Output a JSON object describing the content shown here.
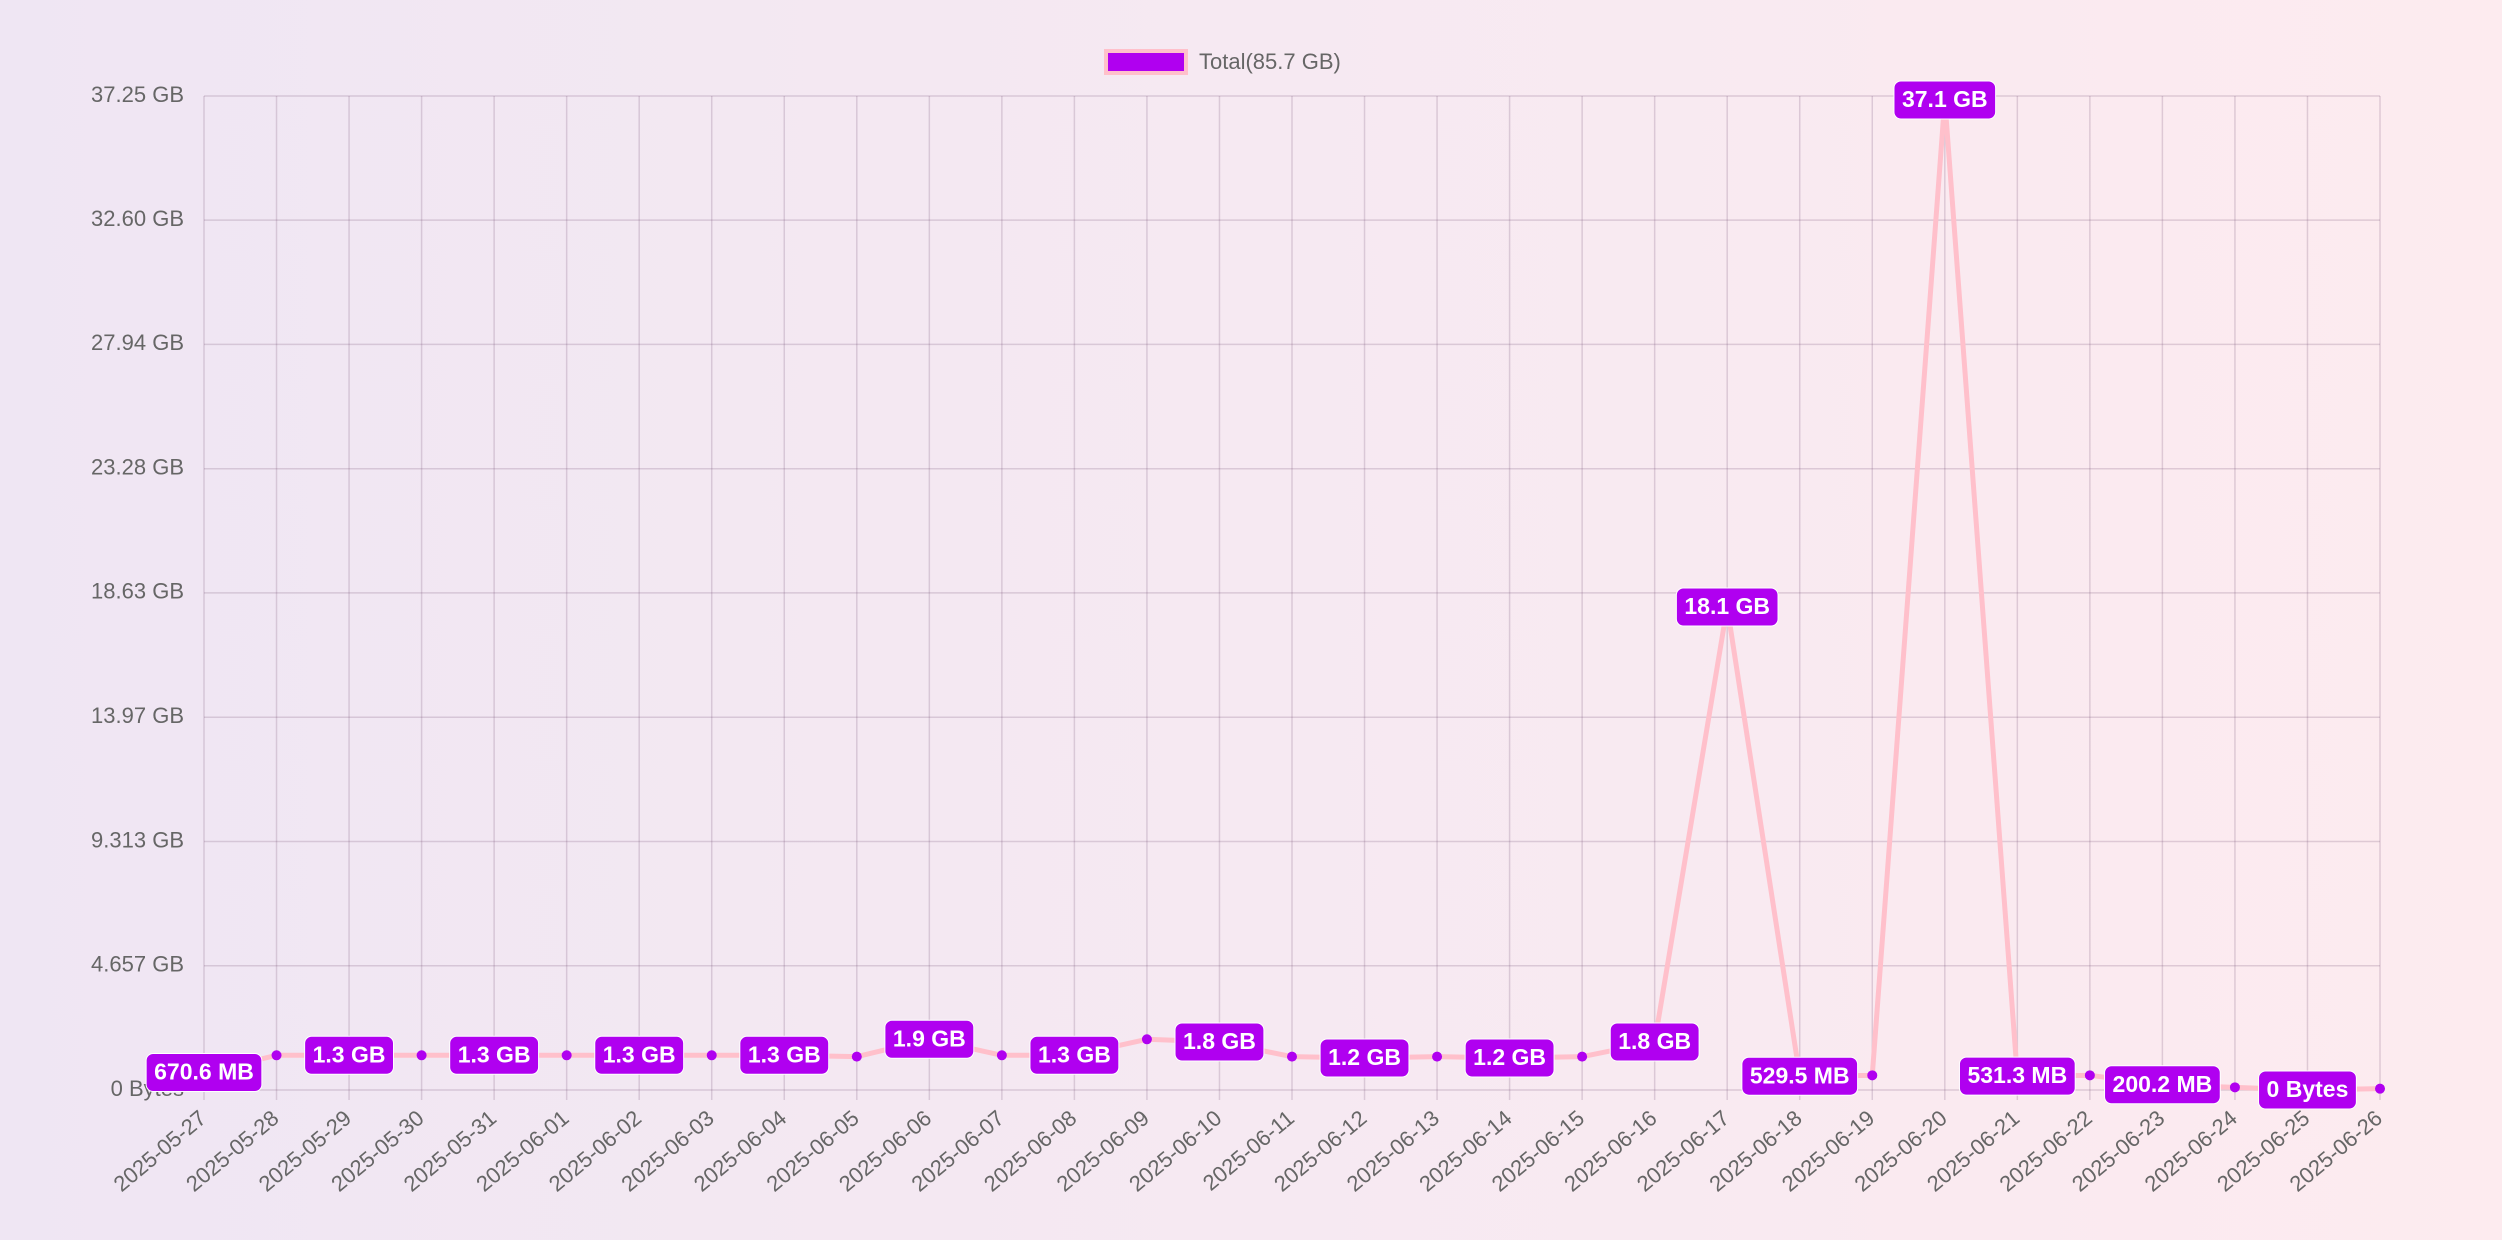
{
  "chart_data": {
    "type": "line",
    "x": [
      "2025-05-27",
      "2025-05-28",
      "2025-05-29",
      "2025-05-30",
      "2025-05-31",
      "2025-06-01",
      "2025-06-02",
      "2025-06-03",
      "2025-06-04",
      "2025-06-05",
      "2025-06-06",
      "2025-06-07",
      "2025-06-08",
      "2025-06-09",
      "2025-06-10",
      "2025-06-11",
      "2025-06-12",
      "2025-06-13",
      "2025-06-14",
      "2025-06-15",
      "2025-06-16",
      "2025-06-17",
      "2025-06-18",
      "2025-06-19",
      "2025-06-20",
      "2025-06-21",
      "2025-06-22",
      "2025-06-23",
      "2025-06-24",
      "2025-06-25",
      "2025-06-26"
    ],
    "series": [
      {
        "name": "Total(85.7 GB)",
        "color": "#ffc0cb",
        "point_color": "#b000f0",
        "values": [
          0.6549,
          1.3,
          1.3,
          1.3,
          1.3,
          1.3,
          1.3,
          1.3,
          1.3,
          1.25,
          1.9,
          1.3,
          1.3,
          1.9,
          1.8,
          1.25,
          1.2,
          1.25,
          1.2,
          1.25,
          1.8,
          18.1,
          0.5171,
          0.55,
          37.1,
          0.5188,
          0.55,
          0.1955,
          0.1,
          0,
          0.05
        ],
        "value_labels": [
          "670.6 MB",
          null,
          "1.3 GB",
          null,
          "1.3 GB",
          null,
          "1.3 GB",
          null,
          "1.3 GB",
          null,
          "1.9 GB",
          null,
          "1.3 GB",
          null,
          "1.8 GB",
          null,
          "1.2 GB",
          null,
          "1.2 GB",
          null,
          "1.8 GB",
          "18.1 GB",
          "529.5 MB",
          null,
          "37.1 GB",
          "531.3 MB",
          null,
          "200.2 MB",
          null,
          "0 Bytes",
          null
        ]
      }
    ],
    "ylim": [
      0,
      37.25
    ],
    "yticks": [
      {
        "value": 0,
        "label": "0 Bytes"
      },
      {
        "value": 4.657,
        "label": "4.657 GB"
      },
      {
        "value": 9.313,
        "label": "9.313 GB"
      },
      {
        "value": 13.97,
        "label": "13.97 GB"
      },
      {
        "value": 18.63,
        "label": "18.63 GB"
      },
      {
        "value": 23.28,
        "label": "23.28 GB"
      },
      {
        "value": 27.94,
        "label": "27.94 GB"
      },
      {
        "value": 32.6,
        "label": "32.60 GB"
      },
      {
        "value": 37.25,
        "label": "37.25 GB"
      }
    ],
    "grid": true,
    "legend": "top"
  }
}
